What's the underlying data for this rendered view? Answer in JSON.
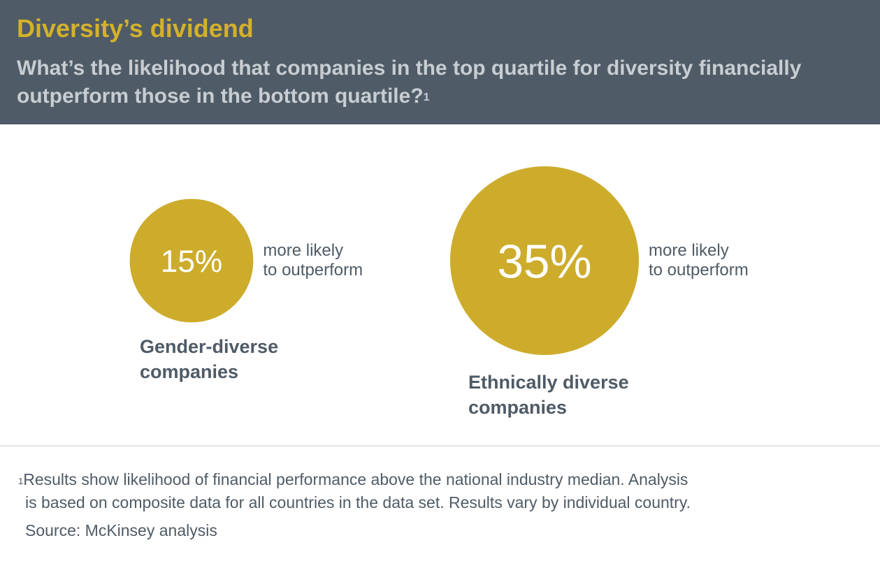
{
  "header": {
    "title": "Diversity’s dividend",
    "subtitle": "What’s the likelihood that companies in the top quartile for diversity financially outperform those in the bottom quartile?",
    "subtitle_footnote_marker": "1"
  },
  "colors": {
    "header_background": "#4f5b66",
    "title": "#d4b12a",
    "subtitle": "#c8cdd2",
    "bubble": "#cdac2c",
    "text_dark": "#4f5b66"
  },
  "chart_data": {
    "type": "bubble",
    "title": "Diversity’s dividend",
    "value_suffix": "%",
    "caption": "more likely to outperform",
    "caption_lines": [
      "more likely",
      "to outperform"
    ],
    "items": [
      {
        "value": 15,
        "value_label": "15%",
        "label": "Gender-diverse companies",
        "label_lines": [
          "Gender-diverse",
          "companies"
        ]
      },
      {
        "value": 35,
        "value_label": "35%",
        "label": "Ethnically diverse companies",
        "label_lines": [
          "Ethnically diverse",
          "companies"
        ]
      }
    ]
  },
  "footer": {
    "footnote_marker": "1",
    "footnote_line1": "Results show likelihood of financial performance above the national industry median. Analysis",
    "footnote_line2": "is based on composite data for all countries in the data set. Results vary by individual country.",
    "source": "Source: McKinsey analysis"
  }
}
